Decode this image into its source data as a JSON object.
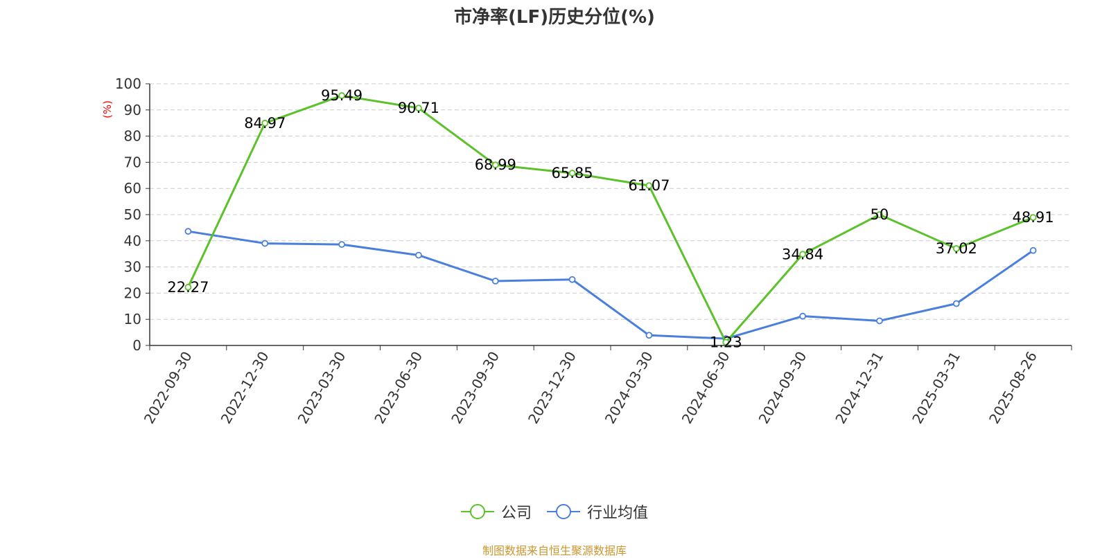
{
  "chart_data": {
    "type": "line",
    "title": "市净率(LF)历史分位(%)",
    "ylabel": "(%)",
    "ylim": [
      0,
      100
    ],
    "yticks": [
      0,
      10,
      20,
      30,
      40,
      50,
      60,
      70,
      80,
      90,
      100
    ],
    "grid": true,
    "legend_position": "bottom",
    "categories": [
      "2022-09-30",
      "2022-12-30",
      "2023-03-30",
      "2023-06-30",
      "2023-09-30",
      "2023-12-30",
      "2024-03-30",
      "2024-06-30",
      "2024-09-30",
      "2024-12-31",
      "2025-03-31",
      "2025-08-26"
    ],
    "series": [
      {
        "name": "公司",
        "color": "#5cc12a",
        "values": [
          22.27,
          84.97,
          95.49,
          90.71,
          68.99,
          65.85,
          61.07,
          1.23,
          34.84,
          50,
          37.02,
          48.91
        ],
        "labels": [
          "22.27",
          "84.97",
          "95.49",
          "90.71",
          "68.99",
          "65.85",
          "61.07",
          "1.23",
          "34.84",
          "50",
          "37.02",
          "48.91"
        ]
      },
      {
        "name": "行业均值",
        "color": "#4a7fdc",
        "values": [
          43.6,
          39.0,
          38.6,
          34.5,
          24.6,
          25.2,
          3.9,
          2.6,
          11.2,
          9.4,
          16.0,
          36.3
        ]
      }
    ]
  },
  "source_text": "制图数据来自恒生聚源数据库",
  "colors": {
    "ylabel": "#ff0000",
    "source": "#c9962f",
    "grid": "#cccccc"
  }
}
